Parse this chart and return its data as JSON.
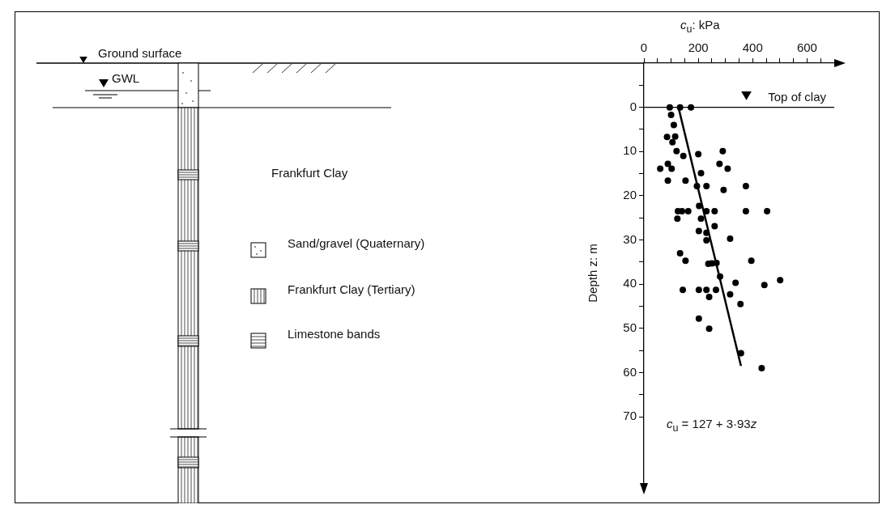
{
  "chart_data": {
    "type": "scatter",
    "xlabel": "c$_{u}$: kPa",
    "ylabel": "Depth z: m",
    "xlim": [
      0,
      700
    ],
    "ylim": [
      85,
      -10
    ],
    "xticks": [
      0,
      {
        "value": 50,
        "label": null
      },
      {
        "value": 100,
        "label": null
      },
      {
        "value": 150,
        "label": null
      },
      200,
      {
        "value": 250,
        "label": null
      },
      {
        "value": 300,
        "label": null
      },
      {
        "value": 350,
        "label": null
      },
      400,
      {
        "value": 450,
        "label": null
      },
      {
        "value": 500,
        "label": null
      },
      {
        "value": 550,
        "label": null
      },
      600,
      {
        "value": 650,
        "label": null
      }
    ],
    "yticks": [
      {
        "value": -5,
        "label": null
      },
      0,
      {
        "value": 5,
        "label": null
      },
      10,
      {
        "value": 15,
        "label": null
      },
      20,
      {
        "value": 25,
        "label": null
      },
      30,
      {
        "value": 35,
        "label": null
      },
      40,
      {
        "value": 45,
        "label": null
      },
      50,
      {
        "value": 55,
        "label": null
      },
      60,
      {
        "value": 65,
        "label": null
      },
      70
    ],
    "series": [
      {
        "color": "#000000",
        "x": [
          95,
          133,
          173,
          100,
          110,
          85,
          115,
          105,
          120,
          145,
          200,
          290,
          60,
          88,
          102,
          278,
          308,
          210,
          88,
          153,
          195,
          230,
          293,
          375,
          203,
          125,
          140,
          163,
          123,
          210,
          230,
          260,
          375,
          453,
          260,
          202,
          230,
          230,
          317,
          133,
          153,
          237,
          250,
          267,
          395,
          280,
          337,
          501,
          443,
          143,
          202,
          230,
          265,
          240,
          317,
          355,
          202,
          240,
          357,
          433
        ],
        "values": [
          0,
          0,
          0,
          1.7,
          4,
          6.7,
          6.6,
          7.9,
          9.9,
          11,
          10.6,
          9.9,
          13.9,
          12.8,
          13.9,
          12.8,
          13.9,
          14.9,
          16.6,
          16.6,
          17.8,
          17.8,
          18.7,
          17.8,
          22.3,
          23.5,
          23.5,
          23.5,
          25.2,
          25.2,
          23.5,
          23.5,
          23.5,
          23.5,
          26.9,
          28,
          28.4,
          30.1,
          29.7,
          33,
          34.7,
          35.4,
          35.3,
          35.2,
          34.7,
          38.3,
          39.7,
          39.1,
          40.2,
          41.3,
          41.3,
          41.3,
          41.3,
          42.9,
          42.3,
          44.5,
          47.8,
          50.1,
          55.6,
          59
        ]
      },
      {
        "type": "line",
        "marker": "none",
        "color": "#000000",
        "x": [
          127,
          357
        ],
        "values": [
          0,
          58.5
        ]
      }
    ],
    "ref_lines": [
      {
        "axis": "y",
        "value": 0,
        "label": "Top of clay",
        "color": "#000000"
      }
    ],
    "marker": "circle",
    "line_style": "solid",
    "annotations": [
      "Ground surface",
      "GWL",
      "Frankfurt Clay",
      "Sand/gravel (Quaternary)",
      "Frankfurt Clay (Tertiary)",
      "Limestone bands",
      "c$_{u}$ = 127 + 3·93z"
    ]
  }
}
